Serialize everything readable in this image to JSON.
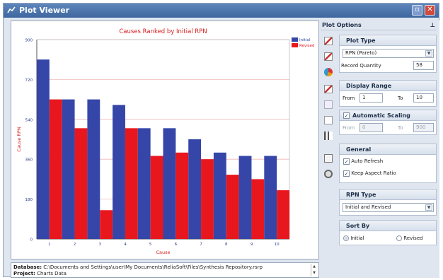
{
  "window": {
    "title": "Plot Viewer"
  },
  "chart_data": {
    "type": "bar",
    "title": "Causes Ranked by Initial RPN",
    "xlabel": "Cause",
    "ylabel": "Cause RPN",
    "categories": [
      "1",
      "2",
      "3",
      "4",
      "5",
      "6",
      "7",
      "8",
      "9",
      "10"
    ],
    "ylim": [
      0,
      900
    ],
    "yticks": [
      "0",
      "180",
      "360",
      "540",
      "720",
      "900"
    ],
    "grid": true,
    "legend_position": "top-right",
    "series": [
      {
        "name": "Initial",
        "color": "#3546a8",
        "values": [
          810,
          630,
          630,
          605,
          500,
          500,
          450,
          390,
          375,
          375
        ]
      },
      {
        "name": "Revised",
        "color": "#e8171d",
        "values": [
          630,
          500,
          130,
          500,
          375,
          390,
          360,
          290,
          270,
          220
        ]
      }
    ]
  },
  "info": {
    "database_label": "Database:",
    "database_value": "C:\\Documents and Settings\\user\\My Documents\\ReliaSoft\\Files\\Synthesis Repository.rsrp",
    "project_label": "Project:",
    "project_value": "Charts Data"
  },
  "options": {
    "title": "Plot Options",
    "plot_type": {
      "header": "Plot Type",
      "value": "RPN (Pareto)",
      "record_quantity_label": "Record Quantity",
      "record_quantity": "58"
    },
    "display_range": {
      "header": "Display Range",
      "from_label": "From",
      "from": "1",
      "to_label": "To",
      "to": "10"
    },
    "auto_scaling": {
      "header": "Automatic Scaling",
      "from_label": "From",
      "from": "0",
      "to_label": "To",
      "to": "900"
    },
    "general": {
      "header": "General",
      "auto_refresh": "Auto Refresh",
      "keep_aspect": "Keep Aspect Ratio"
    },
    "rpn_type": {
      "header": "RPN Type",
      "value": "Initial and Revised"
    },
    "sort_by": {
      "header": "Sort By",
      "initial": "Initial",
      "revised": "Revised"
    }
  }
}
